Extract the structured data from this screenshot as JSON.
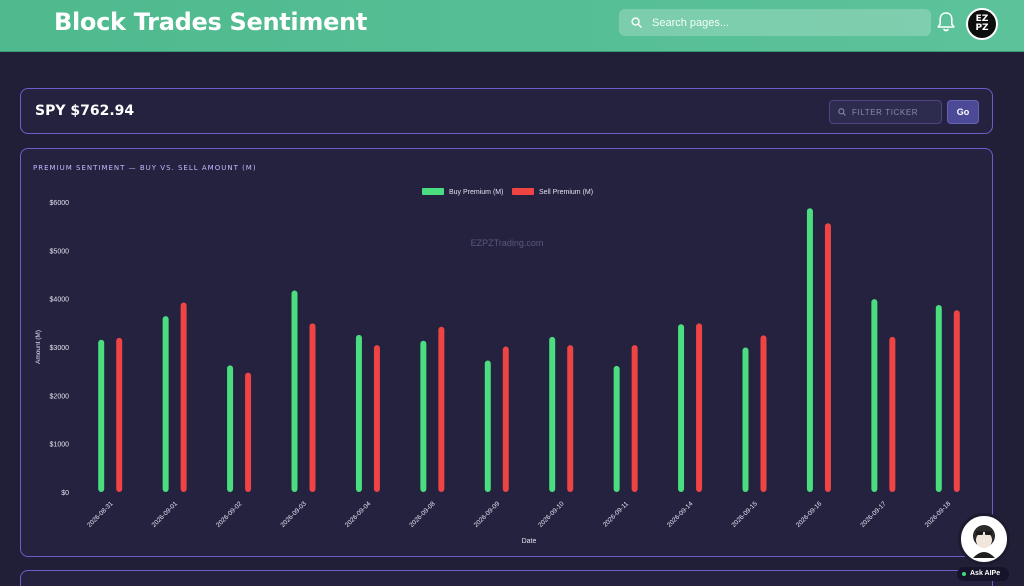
{
  "header": {
    "title": "Block Trades Sentiment",
    "search_placeholder": "Search pages...",
    "avatar_text": "EZPZ"
  },
  "ticker": {
    "label": "SPY $762.94",
    "filter_placeholder": "FILTER TICKER",
    "go_label": "Go"
  },
  "chart": {
    "heading": "PREMIUM SENTIMENT — BUY VS. SELL AMOUNT (M)",
    "watermark": "EZPZTrading.com"
  },
  "assistant": {
    "label": "Ask AIPe"
  },
  "colors": {
    "accent_green": "#4fba8e",
    "buy": "#4ade80",
    "sell": "#ef4444",
    "card_border": "#6a5fc8"
  },
  "icons": [
    "search-icon",
    "bell-icon",
    "ezpz-avatar",
    "aipe-avatar"
  ],
  "chart_data": {
    "type": "bar",
    "categories": [
      "2026-08-31",
      "2026-09-01",
      "2026-09-02",
      "2026-09-03",
      "2026-09-04",
      "2026-09-08",
      "2026-09-09",
      "2026-09-10",
      "2026-09-11",
      "2026-09-14",
      "2026-09-15",
      "2026-09-16",
      "2026-09-17",
      "2026-09-18"
    ],
    "series": [
      {
        "name": "Buy Premium (M)",
        "color": "#4ade80",
        "values": [
          3150,
          3640,
          2620,
          4170,
          3250,
          3130,
          2720,
          3210,
          2610,
          3470,
          2990,
          5870,
          3990,
          3870
        ]
      },
      {
        "name": "Sell Premium (M)",
        "color": "#ef4444",
        "values": [
          3190,
          3920,
          2470,
          3490,
          3040,
          3420,
          3010,
          3040,
          3040,
          3490,
          3240,
          5560,
          3210,
          3760
        ]
      }
    ],
    "ylim": [
      0,
      6000
    ],
    "yticks": [
      0,
      1000,
      2000,
      3000,
      4000,
      5000,
      6000
    ],
    "ytick_labels": [
      "$0",
      "$1000",
      "$2000",
      "$3000",
      "$4000",
      "$5000",
      "$6000"
    ],
    "xlabel": "Date",
    "ylabel": "Amount (M)",
    "legend": "top-center",
    "grid": false
  }
}
